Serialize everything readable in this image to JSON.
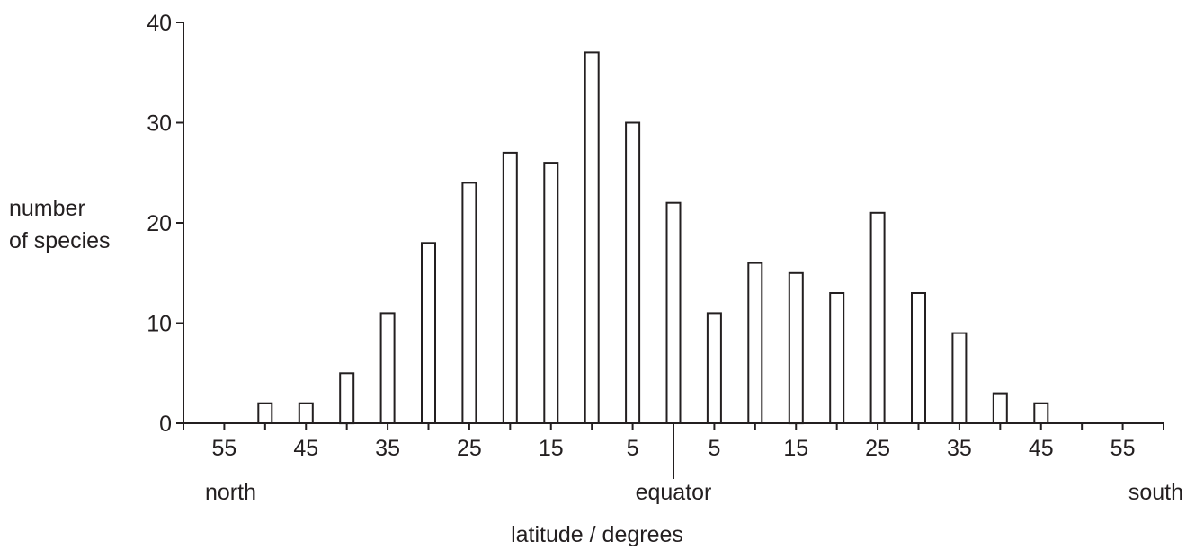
{
  "chart_data": {
    "type": "bar",
    "ylabel_lines": [
      "number",
      "of species"
    ],
    "xlabel": "latitude / degrees",
    "ylim": [
      0,
      40
    ],
    "yticks": [
      0,
      10,
      20,
      30,
      40
    ],
    "xlim": [
      -60,
      60
    ],
    "xticks": [
      -60,
      -55,
      -50,
      -45,
      -40,
      -35,
      -30,
      -25,
      -20,
      -15,
      -10,
      -5,
      0,
      5,
      10,
      15,
      20,
      25,
      30,
      35,
      40,
      45,
      50,
      55,
      60
    ],
    "xtick_labels": [
      {
        "x": -55,
        "text": "55"
      },
      {
        "x": -45,
        "text": "45"
      },
      {
        "x": -35,
        "text": "35"
      },
      {
        "x": -25,
        "text": "25"
      },
      {
        "x": -15,
        "text": "15"
      },
      {
        "x": -5,
        "text": "5"
      },
      {
        "x": 5,
        "text": "5"
      },
      {
        "x": 15,
        "text": "15"
      },
      {
        "x": 25,
        "text": "25"
      },
      {
        "x": 35,
        "text": "35"
      },
      {
        "x": 45,
        "text": "45"
      },
      {
        "x": 55,
        "text": "55"
      }
    ],
    "annotations": [
      {
        "x": -60,
        "text": "north"
      },
      {
        "x": 0,
        "text": "equator"
      },
      {
        "x": 60,
        "text": "south"
      }
    ],
    "series": [
      {
        "values": [
          {
            "x": -50,
            "y": 2
          },
          {
            "x": -45,
            "y": 2
          },
          {
            "x": -40,
            "y": 5
          },
          {
            "x": -35,
            "y": 11
          },
          {
            "x": -30,
            "y": 18
          },
          {
            "x": -25,
            "y": 24
          },
          {
            "x": -20,
            "y": 27
          },
          {
            "x": -15,
            "y": 26
          },
          {
            "x": -10,
            "y": 37
          },
          {
            "x": -5,
            "y": 30
          },
          {
            "x": 0,
            "y": 22
          },
          {
            "x": 5,
            "y": 11
          },
          {
            "x": 10,
            "y": 16
          },
          {
            "x": 15,
            "y": 15
          },
          {
            "x": 20,
            "y": 13
          },
          {
            "x": 25,
            "y": 21
          },
          {
            "x": 30,
            "y": 13
          },
          {
            "x": 35,
            "y": 9
          },
          {
            "x": 40,
            "y": 3
          },
          {
            "x": 45,
            "y": 2
          }
        ]
      }
    ]
  }
}
